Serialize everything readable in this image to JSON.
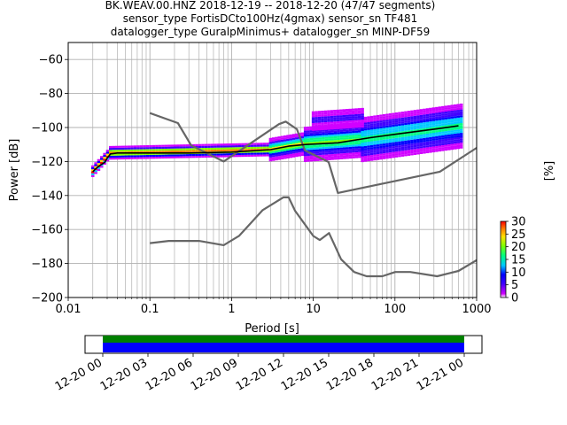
{
  "title_lines": [
    "BK.WEAV.00.HNZ   2018-12-19 -- 2018-12-20  (47/47 segments)",
    "sensor_type FortisDCto100Hz(4gmax) sensor_sn TF481",
    "datalogger_type GuralpMinimus+ datalogger_sn MINP-DF59"
  ],
  "chart_data": [
    {
      "type": "heatmap",
      "subtype": "probabilistic-power-spectral-density",
      "xlabel": "Period [s]",
      "ylabel": "Power [dB]",
      "x_scale": "log",
      "xlim": [
        0.01,
        1000
      ],
      "ylim": [
        -200,
        -50
      ],
      "x_ticks": [
        0.01,
        0.1,
        1,
        10,
        100,
        1000
      ],
      "x_tick_labels": [
        "0.01",
        "0.1",
        "1",
        "10",
        "100",
        "1000"
      ],
      "y_ticks": [
        -200,
        -180,
        -160,
        -140,
        -120,
        -100,
        -80,
        -60
      ],
      "y_tick_labels": [
        "−200",
        "−180",
        "−160",
        "−140",
        "−120",
        "−100",
        "−80",
        "−60"
      ],
      "grid": true,
      "colorbar": {
        "label": "[%]",
        "range": [
          0,
          30
        ],
        "ticks": [
          0,
          5,
          10,
          15,
          20,
          25,
          30
        ],
        "tick_labels": [
          "0",
          "5",
          "10",
          "15",
          "20",
          "25",
          "30"
        ],
        "colormap": [
          "#ffffff",
          "#a000c8",
          "#0000ff",
          "#00c8ff",
          "#00ff00",
          "#ffff00",
          "#ff8000",
          "#ff0000"
        ]
      },
      "series": [
        {
          "name": "",
          "role": "NHNM",
          "color": "#666666",
          "points": [
            [
              0.1,
              -91.5
            ],
            [
              0.22,
              -97.4
            ],
            [
              0.32,
              -110.5
            ],
            [
              0.8,
              -120
            ],
            [
              3.8,
              -98
            ],
            [
              4.6,
              -96.5
            ],
            [
              6.3,
              -101
            ],
            [
              7.9,
              -113.5
            ],
            [
              15.4,
              -120.3
            ],
            [
              20,
              -138.5
            ],
            [
              354.8,
              -126
            ],
            [
              1000,
              -112
            ]
          ]
        },
        {
          "name": "",
          "role": "NLNM",
          "color": "#666666",
          "points": [
            [
              0.1,
              -168
            ],
            [
              0.17,
              -166.7
            ],
            [
              0.4,
              -166.7
            ],
            [
              0.8,
              -169.2
            ],
            [
              1.24,
              -163.7
            ],
            [
              2.4,
              -148.6
            ],
            [
              4.3,
              -141.1
            ],
            [
              5,
              -141.1
            ],
            [
              6,
              -149
            ],
            [
              10,
              -163.8
            ],
            [
              12,
              -166.2
            ],
            [
              15.6,
              -162.1
            ],
            [
              21.9,
              -177.5
            ],
            [
              31.6,
              -185
            ],
            [
              45,
              -187.5
            ],
            [
              70,
              -187.5
            ],
            [
              101,
              -185
            ],
            [
              154,
              -185
            ],
            [
              328,
              -187.5
            ],
            [
              600,
              -184.4
            ],
            [
              1000,
              -178
            ]
          ]
        },
        {
          "name": "",
          "role": "mode",
          "color": "#000000",
          "points": [
            [
              0.02,
              -126
            ],
            [
              0.022,
              -124
            ],
            [
              0.025,
              -122
            ],
            [
              0.028,
              -120.5
            ],
            [
              0.03,
              -118
            ],
            [
              0.033,
              -115.5
            ],
            [
              0.04,
              -115
            ],
            [
              0.1,
              -115
            ],
            [
              0.3,
              -115
            ],
            [
              1,
              -114.5
            ],
            [
              3,
              -113
            ],
            [
              5,
              -111
            ],
            [
              8,
              -110
            ],
            [
              20,
              -109
            ],
            [
              50,
              -106
            ],
            [
              100,
              -104
            ],
            [
              300,
              -101
            ],
            [
              600,
              -99
            ]
          ]
        }
      ],
      "density": [
        {
          "x": [
            0.02,
            0.033
          ],
          "y": [
            -126,
            -115
          ],
          "spread": 1.5,
          "peak": 30
        },
        {
          "x": [
            0.033,
            3.0
          ],
          "y": [
            -115,
            -113
          ],
          "spread": 1.8,
          "peak": 28
        },
        {
          "x": [
            3.0,
            8.0
          ],
          "y": [
            -113,
            -109.5
          ],
          "spread": 3.0,
          "peak": 22
        },
        {
          "x": [
            8.0,
            40
          ],
          "y": [
            -109.5,
            -107
          ],
          "spread": 5.0,
          "peak": 18
        },
        {
          "x": [
            40,
            650
          ],
          "y": [
            -107,
            -99
          ],
          "spread": 6.5,
          "peak": 15
        },
        {
          "x": [
            10,
            40
          ],
          "y": [
            -96,
            -94
          ],
          "spread": 4.0,
          "peak": 3
        }
      ]
    },
    {
      "type": "timeline",
      "x_range": [
        "2018-12-19T22:30",
        "2018-12-21T01:30"
      ],
      "x_tick_labels": [
        "12-20 00",
        "12-20 03",
        "12-20 06",
        "12-20 09",
        "12-20 12",
        "12-20 15",
        "12-20 18",
        "12-20 21",
        "12-21 00"
      ],
      "data_span": [
        "2018-12-20T00:00",
        "2018-12-21T00:00"
      ],
      "tracks": [
        {
          "color": "#008000",
          "level": "upper"
        },
        {
          "color": "#0000ff",
          "level": "lower"
        }
      ]
    }
  ]
}
